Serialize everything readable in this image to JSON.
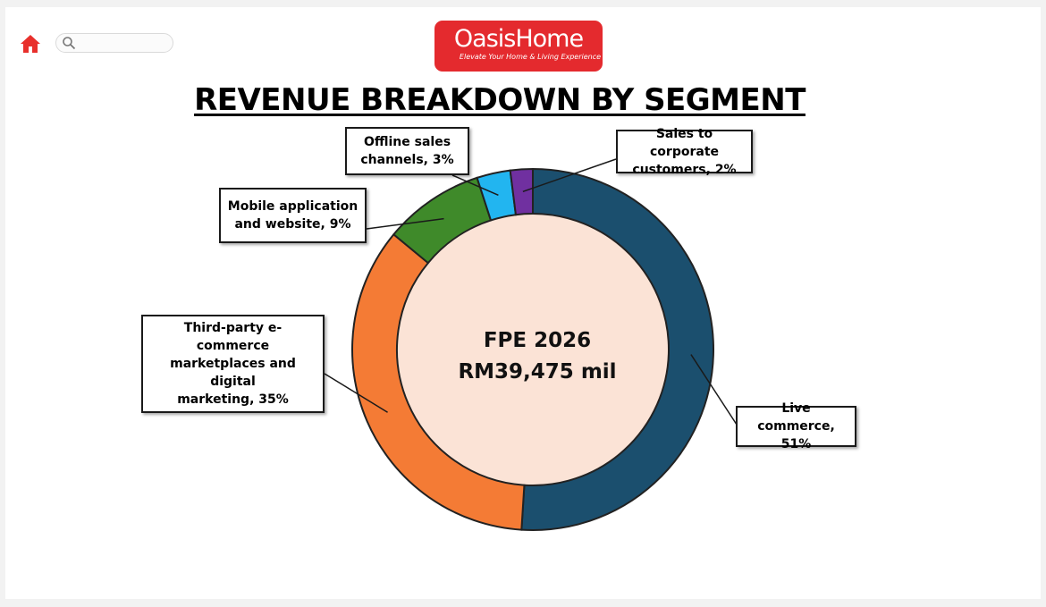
{
  "header": {
    "home_icon": "home-icon",
    "search_icon": "search-icon",
    "search_value": "",
    "logo": {
      "brand": "OasisHome",
      "tagline": "Elevate Your Home & Living Experience"
    }
  },
  "colors": {
    "background": "#ffffff",
    "logo_red": "#e42a2e",
    "home_icon_red": "#e8302c",
    "center_fill": "#fbe3d6"
  },
  "chart_data": {
    "type": "pie",
    "variant": "donut",
    "title": "REVENUE BREAKDOWN BY SEGMENT",
    "center_label": [
      "FPE 2026",
      "RM39,475 mil"
    ],
    "unit": "%",
    "slices": [
      {
        "label": "Live commerce",
        "value": 51,
        "color": "#1b4f6e",
        "data_label": [
          "Live commerce,",
          "51%"
        ]
      },
      {
        "label": "Third-party e-commerce marketplaces and digital marketing",
        "value": 35,
        "color": "#f47b35",
        "data_label": [
          "Third-party e-commerce",
          "marketplaces and digital",
          "marketing, 35%"
        ]
      },
      {
        "label": "Mobile application and website",
        "value": 9,
        "color": "#3f8a2a",
        "data_label": [
          "Mobile application",
          "and website, 9%"
        ]
      },
      {
        "label": "Offline sales channels",
        "value": 3,
        "color": "#22b5f0",
        "data_label": [
          "Offline sales",
          "channels, 3%"
        ]
      },
      {
        "label": "Sales to corporate customers",
        "value": 2,
        "color": "#7030a0",
        "data_label": [
          "Sales to corporate",
          "customers, 2%"
        ]
      }
    ],
    "legend": "none"
  }
}
